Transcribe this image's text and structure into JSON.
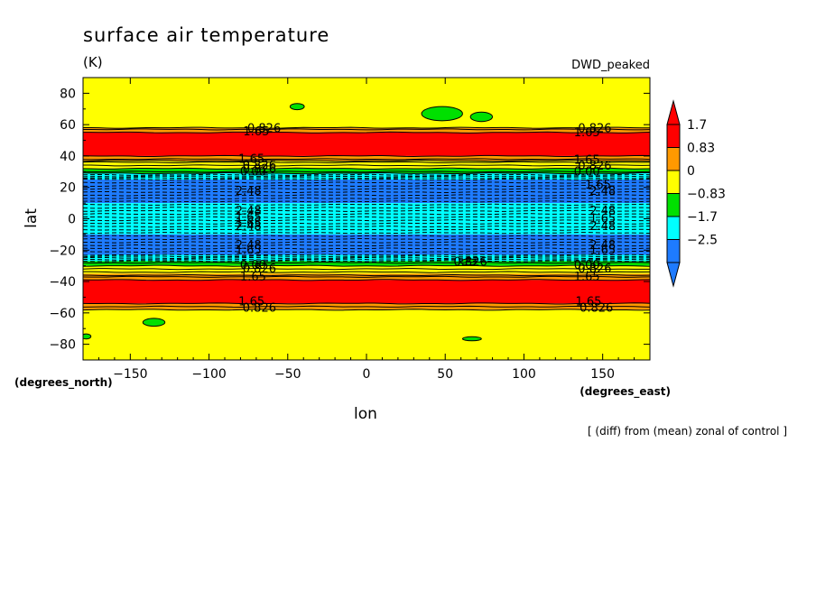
{
  "chart_data": {
    "type": "heatmap",
    "title": "surface air temperature",
    "units": "(K)",
    "experiment": "DWD_peaked",
    "xlabel": "lon",
    "ylabel": "lat",
    "x_units_label": "(degrees_east)",
    "y_units_label": "(degrees_north)",
    "note": "[ (diff) from (mean) zonal of control ]",
    "xlim": [
      -180,
      180
    ],
    "ylim": [
      -90,
      90
    ],
    "x_ticks": [
      -150,
      -100,
      -50,
      0,
      50,
      100,
      150
    ],
    "x_tick_labels": [
      "−150",
      "−100",
      "−50",
      "0",
      "50",
      "100",
      "150"
    ],
    "y_ticks": [
      80,
      60,
      40,
      20,
      0,
      -20,
      -40,
      -60,
      -80
    ],
    "y_tick_labels": [
      "80",
      "60",
      "40",
      "20",
      "0",
      "−20",
      "−40",
      "−60",
      "−80"
    ],
    "colorbar": {
      "levels": [
        -2.48,
        -1.65,
        -0.826,
        0,
        0.826,
        1.65
      ],
      "tick_labels": [
        "1.7",
        "0.83",
        "0",
        "−0.83",
        "−1.7",
        "−2.5"
      ],
      "colors": [
        "#1e7bff",
        "#00ffff",
        "#00e000",
        "#ffff00",
        "#ff9900",
        "#ff0000"
      ]
    },
    "zonal_bands": [
      {
        "lat_min": 58,
        "lat_max": 90,
        "class": 3
      },
      {
        "lat_min": 55,
        "lat_max": 58,
        "class": 4
      },
      {
        "lat_min": 40,
        "lat_max": 55,
        "class": 5
      },
      {
        "lat_min": 37,
        "lat_max": 40,
        "class": 4
      },
      {
        "lat_min": 32,
        "lat_max": 37,
        "class": 3
      },
      {
        "lat_min": 29,
        "lat_max": 32,
        "class": 2
      },
      {
        "lat_min": 25,
        "lat_max": 29,
        "class": 1
      },
      {
        "lat_min": 10,
        "lat_max": 25,
        "class": 0
      },
      {
        "lat_min": -10,
        "lat_max": 10,
        "class": 1
      },
      {
        "lat_min": -23,
        "lat_max": -10,
        "class": 0
      },
      {
        "lat_min": -27,
        "lat_max": -23,
        "class": 1
      },
      {
        "lat_min": -30,
        "lat_max": -27,
        "class": 2
      },
      {
        "lat_min": -35,
        "lat_max": -30,
        "class": 3
      },
      {
        "lat_min": -39,
        "lat_max": -35,
        "class": 4
      },
      {
        "lat_min": -54,
        "lat_max": -39,
        "class": 5
      },
      {
        "lat_min": -58,
        "lat_max": -54,
        "class": 4
      },
      {
        "lat_min": -90,
        "lat_max": -58,
        "class": 3
      }
    ],
    "solid_contours_lat": [
      58,
      57,
      55,
      40,
      38,
      37,
      36,
      34,
      32,
      30,
      29,
      -28,
      -30,
      -32,
      -34,
      -36,
      -37,
      -39,
      -54,
      -56,
      -58
    ],
    "dashed_contours_lat": [
      28,
      27,
      26,
      25,
      23,
      21,
      19,
      17,
      15,
      13,
      11,
      9,
      7,
      5,
      3,
      1,
      -1,
      -3,
      -5,
      -7,
      -9,
      -11,
      -13,
      -15,
      -17,
      -19,
      -21,
      -23,
      -24,
      -25,
      -26,
      -27
    ],
    "patches": [
      {
        "lon": 48,
        "lat": 67,
        "rx": 13,
        "ry": 4.5,
        "class": 2
      },
      {
        "lon": 73,
        "lat": 65,
        "rx": 7,
        "ry": 3,
        "class": 2
      },
      {
        "lon": -44,
        "lat": 71.5,
        "rx": 4.5,
        "ry": 2,
        "class": 2
      },
      {
        "lon": -135,
        "lat": -66,
        "rx": 7,
        "ry": 2.5,
        "class": 2
      },
      {
        "lon": 67,
        "lat": -76.5,
        "rx": 6,
        "ry": 1.3,
        "class": 2
      },
      {
        "lon": 65,
        "lat": -27.5,
        "rx": 5,
        "ry": 2,
        "class": 2
      },
      {
        "lon": -178,
        "lat": -75,
        "rx": 3,
        "ry": 1.6,
        "class": 2
      }
    ],
    "contour_labels": [
      {
        "text": "0.826",
        "lon": -65,
        "lat": 57.5
      },
      {
        "text": "1.65",
        "lon": -70,
        "lat": 55.5
      },
      {
        "text": "0.826",
        "lon": 145,
        "lat": 57.5
      },
      {
        "text": "1.65",
        "lon": 140,
        "lat": 55
      },
      {
        "text": "1.65",
        "lon": -73,
        "lat": 38
      },
      {
        "text": "0.826",
        "lon": -68,
        "lat": 34
      },
      {
        "text": "0.826",
        "lon": -68,
        "lat": 31.5
      },
      {
        "text": "0.00",
        "lon": -72,
        "lat": 30
      },
      {
        "text": "1.65",
        "lon": 140,
        "lat": 37.5
      },
      {
        "text": "0.826",
        "lon": 145,
        "lat": 33.5
      },
      {
        "text": "0.00",
        "lon": 140,
        "lat": 30
      },
      {
        "text": "1.65",
        "lon": 147,
        "lat": 21.5
      },
      {
        "text": "2.48",
        "lon": -75,
        "lat": 17.5
      },
      {
        "text": "2.48",
        "lon": 150,
        "lat": 17.5
      },
      {
        "text": "2.48",
        "lon": -75,
        "lat": 5
      },
      {
        "text": "2.48",
        "lon": 150,
        "lat": 5
      },
      {
        "text": "1.65",
        "lon": -75,
        "lat": 1
      },
      {
        "text": "1.65",
        "lon": 150,
        "lat": 0
      },
      {
        "text": "1.65",
        "lon": -75,
        "lat": -3
      },
      {
        "text": "2.48",
        "lon": -75,
        "lat": -5
      },
      {
        "text": "2.48",
        "lon": 150,
        "lat": -5
      },
      {
        "text": "2.48",
        "lon": -75,
        "lat": -17
      },
      {
        "text": "2.48",
        "lon": 150,
        "lat": -17
      },
      {
        "text": "1.65",
        "lon": -75,
        "lat": -20
      },
      {
        "text": "1.65",
        "lon": 150,
        "lat": -20
      },
      {
        "text": "0.826",
        "lon": 66,
        "lat": -27.5
      },
      {
        "text": "0.00",
        "lon": -72,
        "lat": -29.5
      },
      {
        "text": "0.826",
        "lon": -68,
        "lat": -32
      },
      {
        "text": "0.00",
        "lon": 140,
        "lat": -29.5
      },
      {
        "text": "0.826",
        "lon": 145,
        "lat": -32
      },
      {
        "text": "1.65",
        "lon": -72,
        "lat": -37
      },
      {
        "text": "1.65",
        "lon": 140,
        "lat": -37
      },
      {
        "text": "1.65",
        "lon": -73,
        "lat": -53
      },
      {
        "text": "0.826",
        "lon": -68,
        "lat": -57
      },
      {
        "text": "1.65",
        "lon": 141,
        "lat": -53
      },
      {
        "text": "0.826",
        "lon": 146,
        "lat": -57
      }
    ]
  }
}
